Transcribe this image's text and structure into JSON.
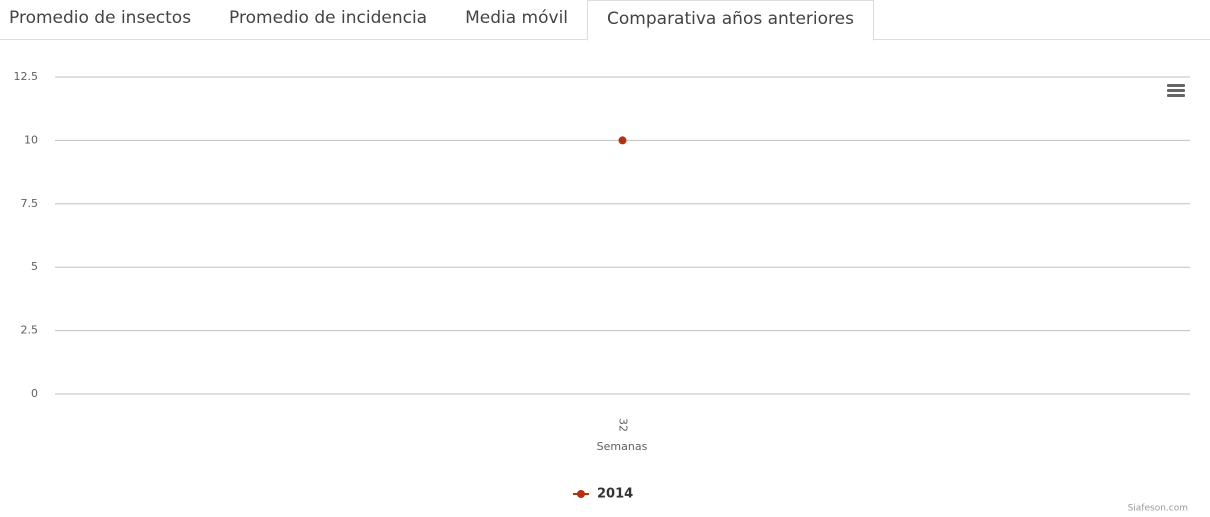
{
  "tabs": [
    "Promedio de insectos",
    "Promedio de incidencia",
    "Media móvil",
    "Comparativa años anteriores"
  ],
  "active_tab": 3,
  "chart_data": {
    "type": "line",
    "categories": [
      "32"
    ],
    "series": [
      {
        "name": "2014",
        "color": "#b5310f",
        "values": [
          10
        ]
      }
    ],
    "ylim": [
      0,
      12.5
    ],
    "yticks": [
      0,
      2.5,
      5,
      7.5,
      10,
      12.5
    ],
    "x_label": "Semanas",
    "grid": true,
    "legend": "bottom",
    "credits": "Siafeson.com"
  }
}
